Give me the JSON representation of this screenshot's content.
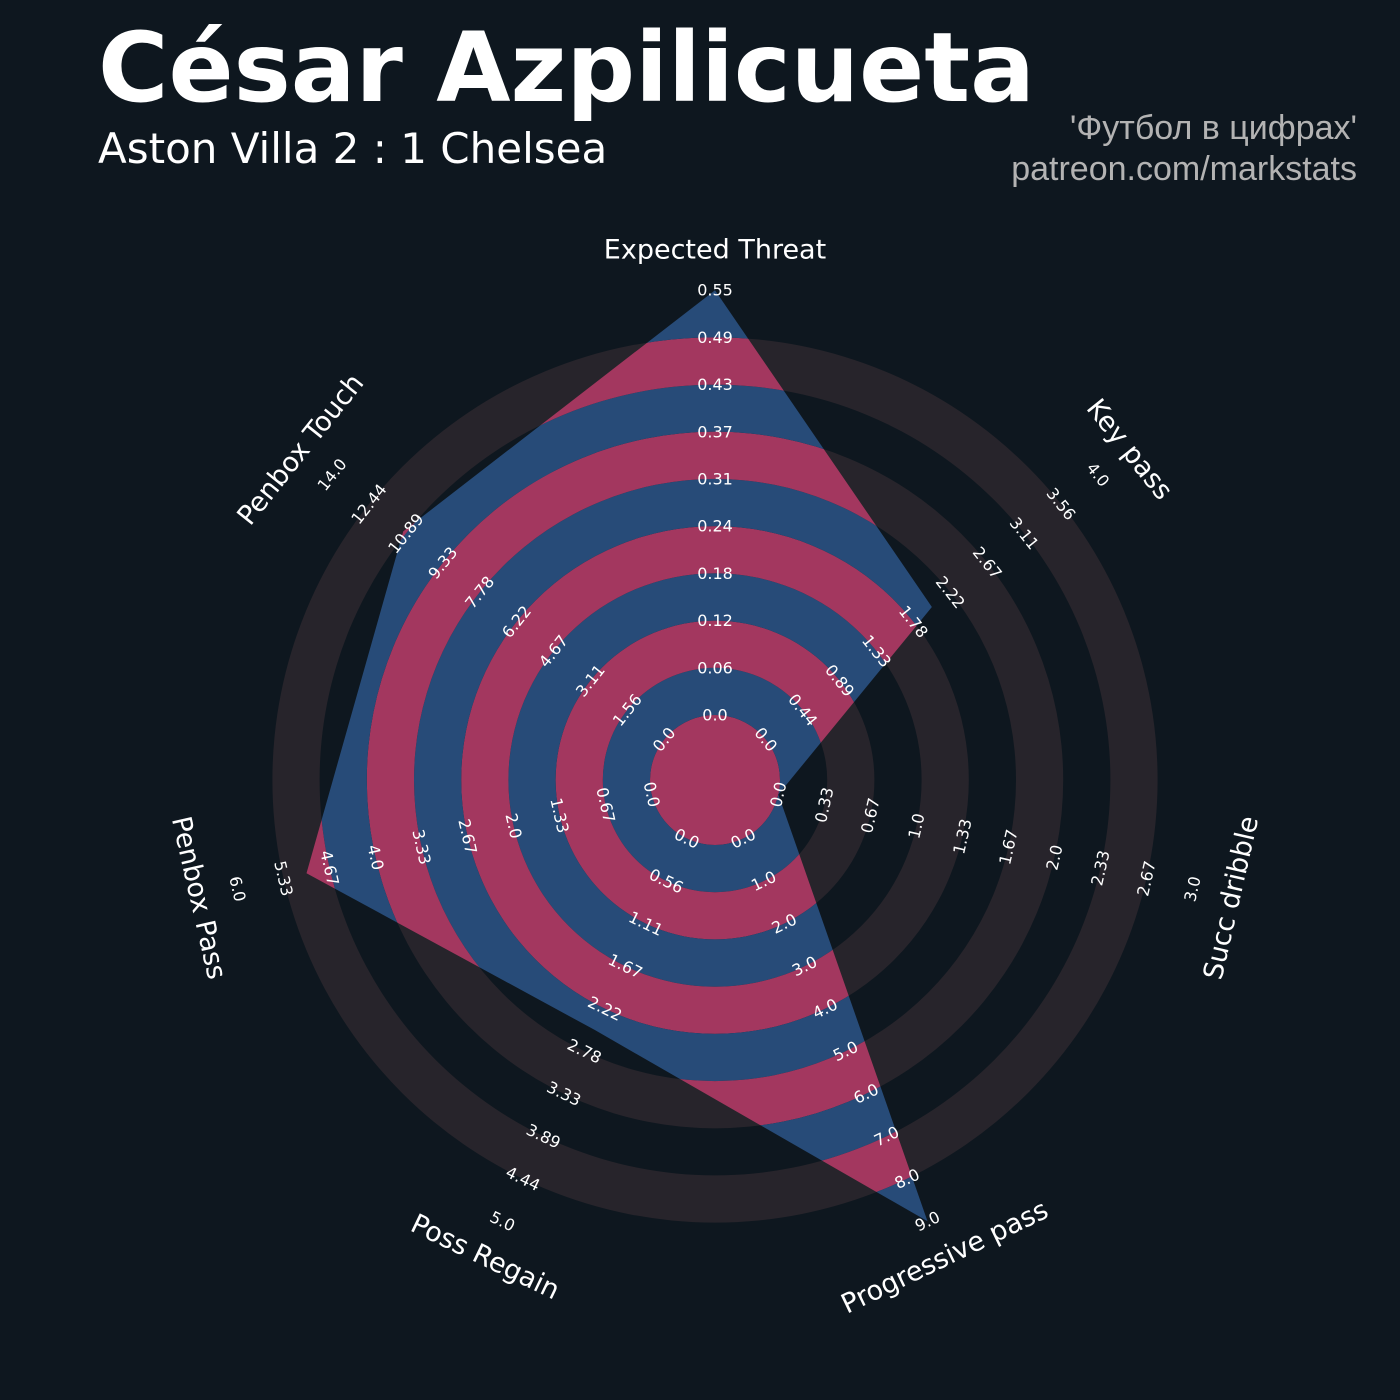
{
  "header": {
    "title": "César Azpilicueta",
    "subtitle": "Aston Villa 2 : 1 Chelsea",
    "credit_line1": "'Футбол в цифрах'",
    "credit_line2": "patreon.com/markstats"
  },
  "colors": {
    "background": "#0e171f",
    "ring_background": "#27242b",
    "ring_blue": "#274b78",
    "ring_pink": "#a3375f",
    "text": "#ffffff",
    "credit": "#b3b3b3"
  },
  "chart_data": {
    "type": "radar",
    "title": "César Azpilicueta",
    "params": [
      "Expected Threat",
      "Key pass",
      "Succ dribble",
      "Progressive pass",
      "Poss Regain",
      "Penbox Pass",
      "Penbox Touch"
    ],
    "ranges": [
      [
        0.0,
        0.55
      ],
      [
        0.0,
        4.0
      ],
      [
        0.0,
        3.0
      ],
      [
        0.0,
        9.0
      ],
      [
        0.0,
        5.0
      ],
      [
        0.0,
        6.0
      ],
      [
        0.0,
        14.0
      ]
    ],
    "values": [
      0.55,
      2.0,
      0.0,
      9.0,
      2.5,
      5.0,
      11.0
    ],
    "tick_labels": [
      [
        "0.0",
        "0.06",
        "0.12",
        "0.18",
        "0.24",
        "0.31",
        "0.37",
        "0.43",
        "0.49",
        "0.55"
      ],
      [
        "0.0",
        "0.44",
        "0.89",
        "1.33",
        "1.78",
        "2.22",
        "2.67",
        "3.11",
        "3.56",
        "4.0"
      ],
      [
        "0.0",
        "0.33",
        "0.67",
        "1.0",
        "1.33",
        "1.67",
        "2.0",
        "2.33",
        "2.67",
        "3.0"
      ],
      [
        "0.0",
        "1.0",
        "2.0",
        "3.0",
        "4.0",
        "5.0",
        "6.0",
        "7.0",
        "8.0",
        "9.0"
      ],
      [
        "0.0",
        "0.56",
        "1.11",
        "1.67",
        "2.22",
        "2.78",
        "3.33",
        "3.89",
        "4.44",
        "5.0"
      ],
      [
        "0.0",
        "0.67",
        "1.33",
        "2.0",
        "2.67",
        "3.33",
        "4.0",
        "4.67",
        "5.33",
        "6.0"
      ],
      [
        "0.0",
        "1.56",
        "3.11",
        "4.67",
        "6.22",
        "7.78",
        "9.33",
        "10.89",
        "12.44",
        "14.0"
      ]
    ]
  }
}
